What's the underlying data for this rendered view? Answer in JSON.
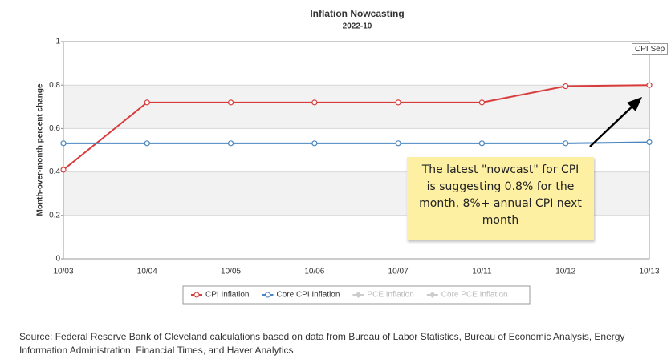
{
  "chart_data": {
    "type": "line",
    "title": "Inflation Nowcasting",
    "subtitle": "2022-10",
    "y_label": "Month-over-month percent change",
    "categories": [
      "10/03",
      "10/04",
      "10/05",
      "10/06",
      "10/07",
      "10/11",
      "10/12",
      "10/13"
    ],
    "series": [
      {
        "name": "CPI Inflation",
        "color": "#d93a3a",
        "values": [
          0.41,
          0.72,
          0.72,
          0.72,
          0.72,
          0.72,
          0.795,
          0.8
        ]
      },
      {
        "name": "Core CPI Inflation",
        "color": "#4a87c0",
        "values": [
          0.532,
          0.532,
          0.532,
          0.532,
          0.532,
          0.532,
          0.532,
          0.537
        ]
      }
    ],
    "hidden_series": [
      "PCE Inflation",
      "Core PCE Inflation"
    ],
    "ylim": [
      0,
      1
    ],
    "yticks": [
      0,
      0.2,
      0.4,
      0.6,
      0.8,
      1
    ],
    "grid": true,
    "tooltip": "CPI Sep",
    "annotation": "The latest \"nowcast\" for CPI is suggesting 0.8% for the month, 8%+ annual CPI next month",
    "source": "Source: Federal Reserve Bank of Cleveland calculations based on data from Bureau of Labor Statistics, Bureau of Economic Analysis, Energy Information Administration, Financial Times, and Haver Analytics"
  }
}
